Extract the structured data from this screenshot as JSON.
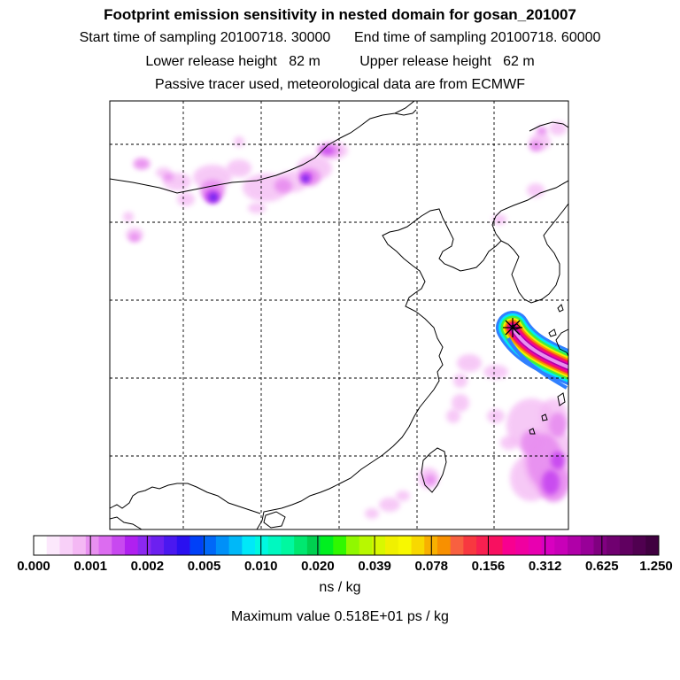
{
  "header": {
    "title": "Footprint emission sensitivity in nested domain for gosan_201007",
    "sampling_line": "Start time of sampling 20100718. 30000      End time of sampling 20100718. 60000",
    "release_line": "Lower release height   82 m          Upper release height   62 m",
    "tracer_line": "Passive tracer used, meteorological data are from ECMWF"
  },
  "colorbar": {
    "tick_labels": [
      "0.000",
      "0.001",
      "0.002",
      "0.005",
      "0.010",
      "0.020",
      "0.039",
      "0.078",
      "0.156",
      "0.312",
      "0.625",
      "1.250"
    ],
    "colors": [
      "#ffffff",
      "#fce8fc",
      "#f8d0f8",
      "#f4b8f4",
      "#e890f0",
      "#dc6cf0",
      "#c848f0",
      "#b020f0",
      "#8c28f0",
      "#6c20f0",
      "#4a18f0",
      "#2a10f0",
      "#0040f8",
      "#0068f8",
      "#0090f8",
      "#00b8f8",
      "#00e8f8",
      "#00f8e0",
      "#00f8c0",
      "#00f8a0",
      "#00e870",
      "#00d050",
      "#00f020",
      "#30f800",
      "#90f800",
      "#b8f800",
      "#d8f800",
      "#f0f000",
      "#f8f800",
      "#f8d800",
      "#f8b000",
      "#f89000",
      "#f86040",
      "#f83840",
      "#f82050",
      "#f81060",
      "#f80090",
      "#f000a0",
      "#e800b0",
      "#d800c0",
      "#c800b8",
      "#b000a8",
      "#980098",
      "#800080",
      "#700070",
      "#600060",
      "#500050",
      "#400040"
    ],
    "unit": "ns / kg"
  },
  "max_value": "Maximum value  0.518E+01 ps / kg",
  "map": {
    "receptor": "Gosan",
    "plume_colors": [
      "#3080ff",
      "#00e8f8",
      "#40f040",
      "#f0f000",
      "#f89000",
      "#f82050",
      "#f000a0",
      "#b000a8",
      "#e890f0"
    ],
    "blob_colors": [
      "#f4b8f4",
      "#e890f0",
      "#c848f0",
      "#6c20f0",
      "#2a10f0"
    ]
  }
}
